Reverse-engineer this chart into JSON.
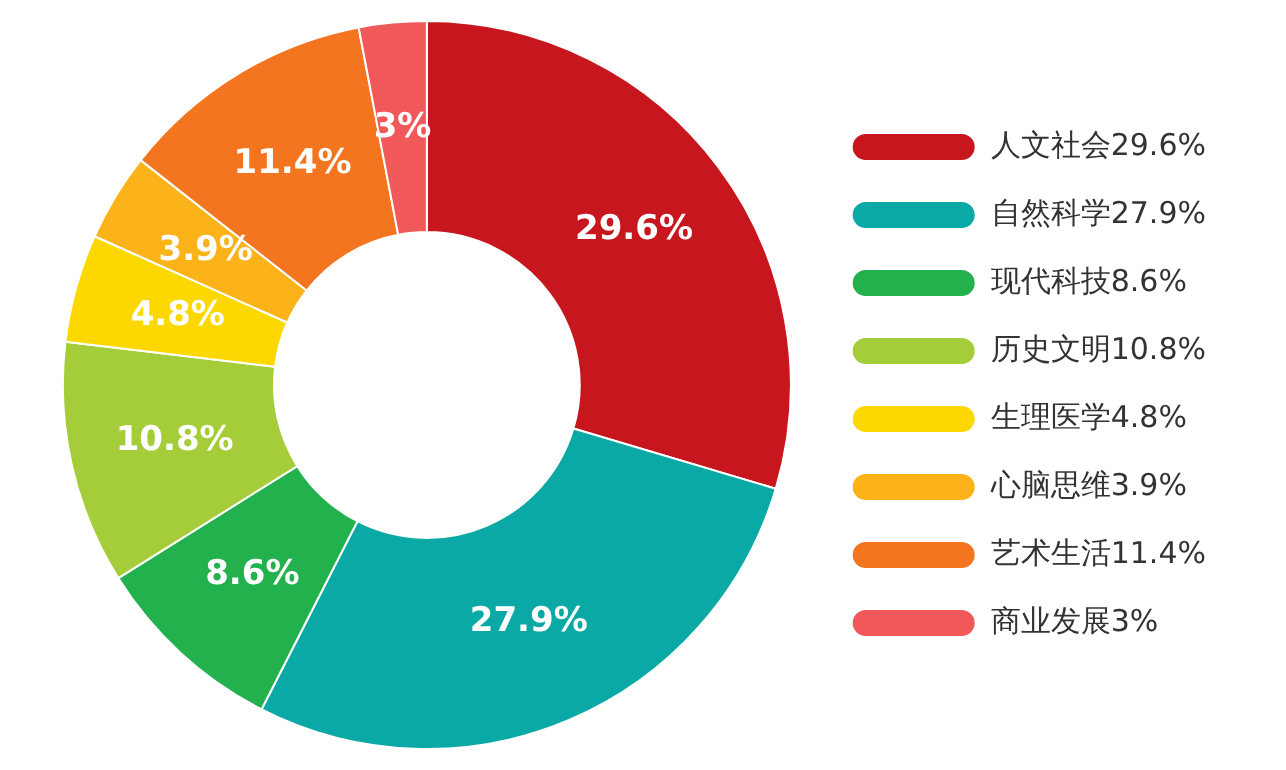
{
  "chart_data": {
    "type": "donut",
    "categories": [
      "人文社会29.6%",
      "自然科学27.9%",
      "现代科技8.6%",
      "历史文明10.8%",
      "生理医学4.8%",
      "心脑思维3.9%",
      "艺术生活11.4%",
      "商业发展3%"
    ],
    "values": [
      29.6,
      27.9,
      8.6,
      10.8,
      4.8,
      3.9,
      11.4,
      3
    ],
    "value_labels": [
      "29.6%",
      "27.9%",
      "8.6%",
      "10.8%",
      "4.8%",
      "3.9%",
      "11.4%",
      "3%"
    ],
    "colors": [
      "#c8161e",
      "#0aa9a6",
      "#22b14c",
      "#a5cd39",
      "#fdd800",
      "#fbb319",
      "#f47520",
      "#f0585a"
    ],
    "legend": "right"
  }
}
